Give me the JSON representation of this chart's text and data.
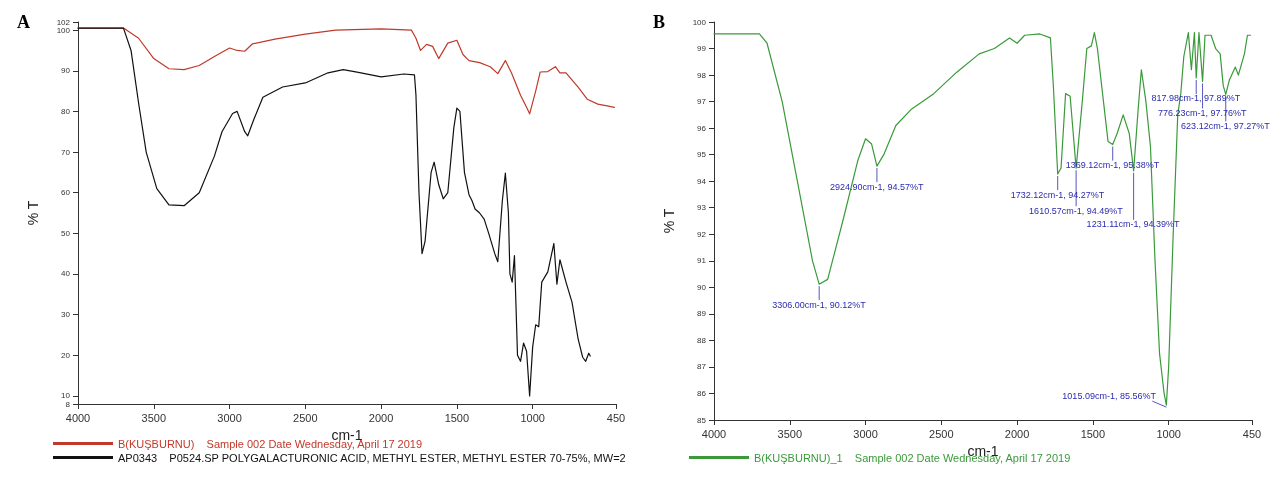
{
  "chart_data": [
    {
      "type": "line",
      "title": "A",
      "xlabel": "cm-1",
      "ylabel": "% T",
      "xlim": [
        4000,
        450
      ],
      "xticks": [
        4000,
        3500,
        3000,
        2500,
        2000,
        1500,
        1000,
        450
      ],
      "ylim": [
        8,
        102
      ],
      "yticks": [
        8,
        10,
        20,
        30,
        40,
        50,
        60,
        70,
        80,
        90,
        100,
        102
      ],
      "grid": false,
      "legend": "bottom",
      "marker": "none",
      "line_style": "solid",
      "series": [
        {
          "name": "B(KUŞBURNU)    Sample 002 Date Wednesday, April 17 2019",
          "color": "#c0392b",
          "x": [
            4000,
            3700,
            3600,
            3500,
            3400,
            3300,
            3200,
            3100,
            3000,
            2950,
            2900,
            2850,
            2700,
            2500,
            2300,
            2000,
            1800,
            1770,
            1740,
            1700,
            1660,
            1620,
            1560,
            1500,
            1460,
            1420,
            1350,
            1280,
            1230,
            1180,
            1140,
            1080,
            1040,
            1020,
            980,
            950,
            900,
            850,
            820,
            780,
            700,
            640,
            570,
            500,
            460
          ],
          "values": [
            100.5,
            100.5,
            98,
            93,
            90.5,
            90.3,
            91.3,
            93.5,
            95.6,
            95,
            94.8,
            96.6,
            97.8,
            99,
            100,
            100.3,
            100,
            98,
            95,
            96.5,
            96,
            93,
            96.8,
            97.5,
            94,
            92.5,
            92,
            91,
            89.3,
            92.5,
            89.5,
            84,
            81,
            79.4,
            85,
            89.7,
            89.8,
            91,
            89.5,
            89.5,
            86,
            83,
            81.8,
            81.3,
            81
          ]
        },
        {
          "name": "AP0343    P0524.SP POLYGALACTURONIC ACID, METHYL ESTER, METHYL ESTER 70-75%, MW=2",
          "color": "#111111",
          "x": [
            4000,
            3700,
            3650,
            3600,
            3550,
            3480,
            3400,
            3300,
            3200,
            3100,
            3050,
            2980,
            2950,
            2900,
            2880,
            2840,
            2780,
            2650,
            2500,
            2350,
            2250,
            2150,
            2000,
            1850,
            1780,
            1770,
            1750,
            1730,
            1710,
            1670,
            1650,
            1620,
            1590,
            1560,
            1520,
            1500,
            1480,
            1450,
            1420,
            1400,
            1380,
            1350,
            1320,
            1290,
            1250,
            1230,
            1200,
            1180,
            1160,
            1150,
            1135,
            1120,
            1100,
            1080,
            1060,
            1040,
            1020,
            1000,
            980,
            960,
            940,
            900,
            880,
            860,
            840,
            820,
            780,
            740,
            700,
            670,
            650,
            630,
            620
          ],
          "values": [
            100.5,
            100.5,
            95,
            82,
            70,
            61,
            57,
            56.8,
            60,
            69,
            75,
            79.5,
            80,
            75,
            74,
            78,
            83.5,
            86,
            87,
            89.5,
            90.3,
            89.6,
            88.5,
            89.2,
            89,
            84,
            60,
            45,
            48,
            65,
            67.5,
            62,
            58.5,
            60,
            76,
            80.8,
            80,
            65,
            59.5,
            58,
            56,
            55,
            53.5,
            50,
            45,
            43,
            58,
            64.8,
            55,
            40,
            38,
            44.5,
            20,
            18.5,
            23,
            21,
            10,
            22,
            27.5,
            27,
            38,
            40.5,
            44,
            47.5,
            37.5,
            43.5,
            38,
            33,
            24,
            19.5,
            18.5,
            20.5,
            19.8
          ]
        }
      ]
    },
    {
      "type": "line",
      "title": "B",
      "xlabel": "cm-1",
      "ylabel": "% T",
      "xlim": [
        4000,
        450
      ],
      "xticks": [
        4000,
        3500,
        3000,
        2500,
        2000,
        1500,
        1000,
        450
      ],
      "ylim": [
        85,
        100
      ],
      "yticks": [
        85,
        86,
        87,
        88,
        89,
        90,
        91,
        92,
        93,
        94,
        95,
        96,
        97,
        98,
        99,
        100
      ],
      "grid": false,
      "legend": "bottom",
      "marker": "none",
      "line_style": "solid",
      "annotations": [
        {
          "text": "3306.00cm-1, 90.12%T",
          "x": 3306,
          "y": 90.12
        },
        {
          "text": "2924.90cm-1, 94.57%T",
          "x": 2924.9,
          "y": 94.57
        },
        {
          "text": "1732.12cm-1, 94.27%T",
          "x": 1732.12,
          "y": 94.27
        },
        {
          "text": "1610.57cm-1, 94.49%T",
          "x": 1610.57,
          "y": 94.49
        },
        {
          "text": "1369.12cm-1, 95.38%T",
          "x": 1369.12,
          "y": 95.38
        },
        {
          "text": "1231.11cm-1, 94.39%T",
          "x": 1231.11,
          "y": 94.39
        },
        {
          "text": "1015.09cm-1, 85.56%T",
          "x": 1015.09,
          "y": 85.56
        },
        {
          "text": "817.98cm-1, 97.89%T",
          "x": 817.98,
          "y": 97.89
        },
        {
          "text": "776.23cm-1, 97.76%T",
          "x": 776.23,
          "y": 97.76
        },
        {
          "text": "623.12cm-1, 97.27%T",
          "x": 623.12,
          "y": 97.27
        }
      ],
      "series": [
        {
          "name": "B(KUŞBURNU)_1    Sample 002 Date Wednesday, April 17 2019",
          "color": "#3a9a3a",
          "x": [
            4000,
            3700,
            3650,
            3550,
            3450,
            3350,
            3306,
            3250,
            3150,
            3050,
            3000,
            2960,
            2924.9,
            2880,
            2800,
            2700,
            2550,
            2400,
            2250,
            2150,
            2050,
            2000,
            1950,
            1850,
            1780,
            1760,
            1732.12,
            1710,
            1680,
            1650,
            1610.57,
            1570,
            1540,
            1510,
            1490,
            1470,
            1430,
            1400,
            1369.12,
            1340,
            1300,
            1260,
            1231.11,
            1200,
            1180,
            1150,
            1120,
            1090,
            1060,
            1030,
            1015.09,
            1000,
            970,
            940,
            920,
            900,
            870,
            850,
            830,
            817.98,
            800,
            776.23,
            760,
            720,
            690,
            660,
            640,
            623.12,
            600,
            560,
            540,
            500,
            480,
            460
          ],
          "values": [
            99.55,
            99.55,
            99.2,
            97,
            94,
            91,
            90.12,
            90.3,
            92.5,
            94.8,
            95.6,
            95.4,
            94.57,
            95,
            96.1,
            96.7,
            97.3,
            98.1,
            98.8,
            99,
            99.4,
            99.2,
            99.5,
            99.55,
            99.4,
            97.5,
            94.27,
            94.5,
            97.3,
            97.2,
            94.49,
            97,
            99,
            99.1,
            99.6,
            99,
            97,
            95.5,
            95.38,
            95.8,
            96.5,
            95.8,
            94.39,
            96.8,
            98.2,
            97,
            95.3,
            91,
            87.5,
            86,
            85.56,
            87,
            92,
            96.5,
            97.3,
            98.7,
            99.6,
            98.2,
            99.6,
            97.89,
            99.6,
            97.76,
            99.5,
            99.5,
            99,
            98.8,
            97.6,
            97.27,
            97.8,
            98.3,
            98,
            98.8,
            99.5,
            99.5
          ]
        }
      ]
    }
  ]
}
